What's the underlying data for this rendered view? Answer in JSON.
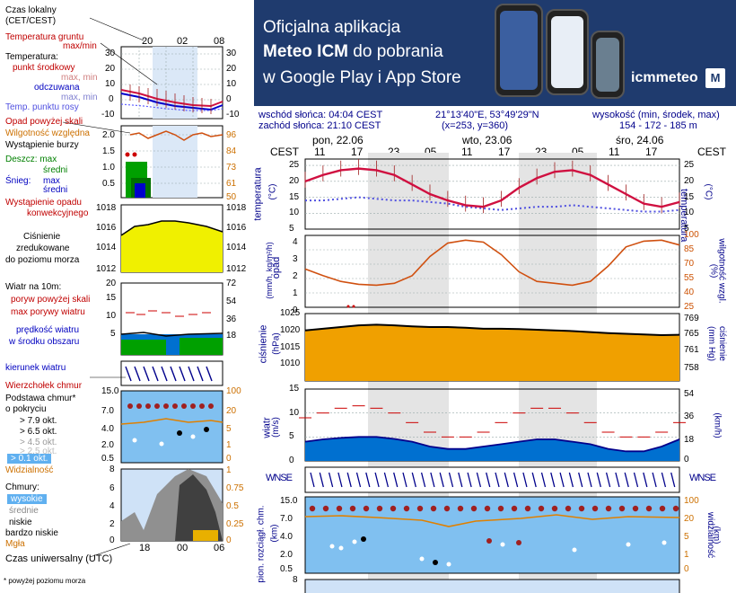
{
  "banner": {
    "line1": "Oficjalna aplikacja",
    "line2a": "Meteo ICM",
    "line2b": " do pobrania",
    "line3": "w Google Play i App Store",
    "logo": "icmmeteo",
    "logo_badge": "M"
  },
  "legend": {
    "local_time": "Czas lokalny",
    "local_time_zone": "(CET/CEST)",
    "top_hours": [
      "20",
      "02",
      "08"
    ],
    "ground_temp": "Temperatura gruntu",
    "ground_maxmin": "max/min",
    "temperature": "Temperatura:",
    "mid_point": "punkt środkowy",
    "mid_maxmin": "max, min",
    "apparent": "odczuwana",
    "apparent_maxmin": "max, min",
    "dew_point": "Temp. punktu rosy",
    "temp_ticks_left": [
      "30",
      "20",
      "10",
      "0",
      "-10"
    ],
    "temp_ticks_right": [
      "30",
      "20",
      "10",
      "0",
      "-10"
    ],
    "precip_above": "Opad powyżej skali",
    "humidity": "Wilgotność względna",
    "storm": "Wystąpienie burzy",
    "rain": "Deszcz: max",
    "rain_mean": "średni",
    "snow": "Śnieg:",
    "snow_max": "max",
    "snow_mean": "średni",
    "conv": "Wystąpienie opadu",
    "conv2": "konwekcyjnego",
    "precip_ticks": [
      "2.0",
      "1.5",
      "1.0",
      "0.5"
    ],
    "hum_ticks": [
      "96",
      "84",
      "73",
      "61",
      "50"
    ],
    "pressure1": "Ciśnienie",
    "pressure2": "zredukowane",
    "pressure3": "do poziomu morza",
    "pres_ticks": [
      "1018",
      "1016",
      "1014",
      "1012"
    ],
    "wind_title": "Wiatr na 10m:",
    "gust_above": "poryw powyżej skali",
    "gust_max": "max porywy wiatru",
    "wind_speed": "prędkość wiatru",
    "wind_area": "w środku obszaru",
    "wind_ticks": [
      "20",
      "15",
      "10",
      "5"
    ],
    "wind_ticks_r": [
      "72",
      "54",
      "36",
      "18"
    ],
    "wind_dir": "kierunek wiatru",
    "cloud_top": "Wierzchołek chmur",
    "cloud_base": "Podstawa chmur*",
    "cloud_cover": "o pokryciu",
    "okt": [
      "> 7.9 okt.",
      "> 6.5 okt.",
      "> 4.5 okt.",
      "> 2.5 okt.",
      "> 0.1 okt."
    ],
    "base_ticks": [
      "15.0",
      "7.0",
      "4.0",
      "2.0",
      "0.5"
    ],
    "base_ticks_r": [
      "100",
      "20",
      "5",
      "1",
      "0"
    ],
    "visibility": "Widzialność",
    "clouds": "Chmury:",
    "high": "wysokie",
    "mid": "średnie",
    "low": "niskie",
    "very_low": "bardzo niskie",
    "fog": "Mgła",
    "cloud_ticks": [
      "8",
      "6",
      "4",
      "2",
      "0"
    ],
    "cloud_ticks_r": [
      "1",
      "0.75",
      "0.5",
      "0.25",
      "0"
    ],
    "utc": "Czas uniwersalny (UTC)",
    "utc_hours": [
      "18",
      "00",
      "06"
    ],
    "footnote": "* powyżej poziomu morza"
  },
  "header": {
    "sunrise": "wschód słońca: 04:04 CEST",
    "sunset": "zachód słońca: 21:10 CEST",
    "coords": "21°13'40\"E, 53°49'29\"N",
    "grid": "(x=253,  y=360)",
    "altitude_label": "wysokość (min, środek, max)",
    "altitude_values": "154 - 172 - 185 m",
    "tz_left": "CEST",
    "tz_right": "CEST",
    "days": [
      "pon, 22.06",
      "wto, 23.06",
      "śro, 24.06"
    ],
    "hours": [
      "11",
      "17",
      "23",
      "05",
      "11",
      "17",
      "23",
      "05",
      "11",
      "17"
    ]
  },
  "axes": {
    "temp_label": "temperatura",
    "temp_unit": "(°C)",
    "temp_ticks": [
      "25",
      "20",
      "15",
      "10",
      "5"
    ],
    "precip_label": "opad",
    "precip_unit": "(mm/h, kg/m²/h)",
    "precip_ticks": [
      "4",
      "3",
      "2",
      "1",
      "0"
    ],
    "hum_label": "wilgotność wzgl.",
    "hum_unit": "(%)",
    "hum_ticks": [
      "100",
      "85",
      "70",
      "55",
      "40",
      "25"
    ],
    "pres_label": "ciśnienie",
    "pres_unit": "(hPa)",
    "pres_ticks": [
      "1025",
      "1020",
      "1015",
      "1010"
    ],
    "pres_ticks_r": [
      "769",
      "765",
      "761",
      "758"
    ],
    "pres_unit_r": "(mm Hg)",
    "wind_label": "wiatr",
    "wind_unit": "(m/s)",
    "wind_ticks": [
      "15",
      "10",
      "5",
      "0"
    ],
    "wind_ticks_r": [
      "54",
      "36",
      "18",
      "0"
    ],
    "wind_unit_r": "(km/h)",
    "base_label": "pion. rozciągł. chm.",
    "base_unit": "(km)",
    "base_ticks": [
      "15.0",
      "7.0",
      "4.0",
      "2.0",
      "0.5"
    ],
    "base_ticks_r": [
      "100",
      "20",
      "5",
      "1",
      "0"
    ],
    "vis_label": "widzialność",
    "vis_unit": "(km)",
    "bottom_tick": "8",
    "compass": "WNSE"
  },
  "chart_data": [
    {
      "type": "line",
      "title": "temperatura",
      "ylabel": "(°C)",
      "ylim": [
        5,
        27
      ],
      "x_hours": [
        0,
        3,
        6,
        9,
        12,
        15,
        18,
        21,
        24,
        27,
        30,
        33,
        36,
        39,
        42,
        45,
        48,
        51,
        54,
        57,
        60,
        63
      ],
      "series": [
        {
          "name": "temperatura",
          "values": [
            20,
            22,
            23.5,
            24,
            23.5,
            22,
            19,
            16,
            14,
            12.5,
            12,
            14,
            18,
            21,
            23,
            23.5,
            22,
            19,
            16,
            13,
            12,
            13.5
          ]
        },
        {
          "name": "punkt rosy",
          "values": [
            14,
            14,
            14.5,
            15,
            14.5,
            14,
            14,
            13.5,
            13,
            12,
            11.5,
            11,
            11.5,
            12,
            12,
            12.5,
            12,
            11.5,
            11,
            10.5,
            10.5,
            11
          ]
        }
      ]
    },
    {
      "type": "line",
      "title": "wilgotność wzgl.",
      "ylabel": "(%)",
      "ylim": [
        25,
        100
      ],
      "series": [
        {
          "name": "wilgotność",
          "values": [
            65,
            58,
            52,
            49,
            48,
            50,
            58,
            78,
            92,
            95,
            93,
            80,
            62,
            52,
            50,
            48,
            52,
            68,
            88,
            94,
            95,
            90
          ]
        }
      ]
    },
    {
      "type": "area",
      "title": "ciśnienie",
      "ylabel": "(hPa)",
      "ylim": [
        1005,
        1025
      ],
      "series": [
        {
          "name": "ciśnienie",
          "values": [
            1020,
            1020.5,
            1021,
            1021.5,
            1021.7,
            1021.5,
            1021.2,
            1021,
            1021,
            1020.8,
            1020.5,
            1020.5,
            1020.4,
            1020.2,
            1020,
            1019.8,
            1019.5,
            1019.2,
            1019,
            1018.8,
            1018.6,
            1018.7
          ]
        }
      ]
    },
    {
      "type": "line",
      "title": "wiatr",
      "ylabel": "(m/s)",
      "ylim": [
        0,
        15
      ],
      "series": [
        {
          "name": "prędkość wiatru",
          "values": [
            4,
            4.5,
            4.8,
            5,
            5,
            4.6,
            4,
            3,
            2.5,
            2.5,
            3,
            3.5,
            4,
            4.5,
            4.5,
            4,
            3.5,
            2.5,
            2,
            2,
            3,
            4.5
          ]
        },
        {
          "name": "porywy",
          "values": [
            9,
            10,
            11,
            11.5,
            11,
            10,
            8,
            6,
            5,
            5,
            6,
            8,
            10,
            11,
            11,
            10,
            8,
            6,
            5,
            5,
            6,
            8
          ]
        }
      ]
    }
  ]
}
